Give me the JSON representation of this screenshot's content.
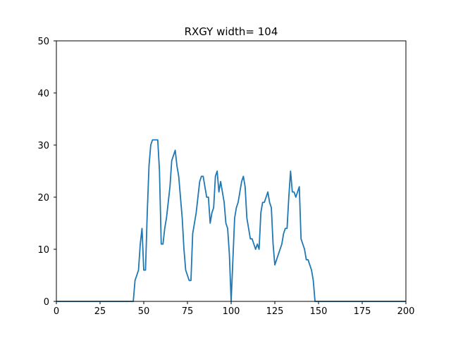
{
  "chart_data": {
    "type": "line",
    "title": "RXGY width= 104",
    "xlabel": "",
    "ylabel": "",
    "xlim": [
      0,
      200
    ],
    "ylim": [
      0,
      50
    ],
    "x_ticks": [
      0,
      25,
      50,
      75,
      100,
      125,
      150,
      175,
      200
    ],
    "y_ticks": [
      0,
      10,
      20,
      30,
      40,
      50
    ],
    "grid": false,
    "colors": {
      "line": "#1f77b4"
    },
    "series": [
      {
        "points": [
          [
            0,
            0
          ],
          [
            44,
            0
          ],
          [
            45,
            4
          ],
          [
            47,
            6
          ],
          [
            48,
            11
          ],
          [
            49,
            14
          ],
          [
            50,
            6
          ],
          [
            51,
            6
          ],
          [
            52,
            17
          ],
          [
            53,
            26
          ],
          [
            54,
            30
          ],
          [
            55,
            31
          ],
          [
            56,
            31
          ],
          [
            57,
            31
          ],
          [
            58,
            31
          ],
          [
            59,
            25
          ],
          [
            60,
            11
          ],
          [
            61,
            11
          ],
          [
            62,
            14
          ],
          [
            63,
            16
          ],
          [
            64,
            19
          ],
          [
            65,
            22
          ],
          [
            66,
            27
          ],
          [
            67,
            28
          ],
          [
            68,
            29
          ],
          [
            69,
            26
          ],
          [
            70,
            24
          ],
          [
            71,
            20
          ],
          [
            72,
            16
          ],
          [
            73,
            10
          ],
          [
            74,
            6
          ],
          [
            75,
            5
          ],
          [
            76,
            4
          ],
          [
            77,
            4
          ],
          [
            78,
            13
          ],
          [
            79,
            15
          ],
          [
            80,
            17
          ],
          [
            81,
            20
          ],
          [
            82,
            23
          ],
          [
            83,
            24
          ],
          [
            84,
            24
          ],
          [
            85,
            22
          ],
          [
            86,
            20
          ],
          [
            87,
            20
          ],
          [
            88,
            15
          ],
          [
            89,
            17
          ],
          [
            90,
            18
          ],
          [
            91,
            24
          ],
          [
            92,
            25
          ],
          [
            93,
            21
          ],
          [
            94,
            23
          ],
          [
            95,
            21
          ],
          [
            96,
            19
          ],
          [
            97,
            15
          ],
          [
            98,
            14
          ],
          [
            99,
            9
          ],
          [
            100,
            0
          ],
          [
            101,
            8
          ],
          [
            102,
            16
          ],
          [
            103,
            18
          ],
          [
            104,
            19
          ],
          [
            105,
            21
          ],
          [
            106,
            23
          ],
          [
            107,
            24
          ],
          [
            108,
            22
          ],
          [
            109,
            16
          ],
          [
            110,
            14
          ],
          [
            111,
            12
          ],
          [
            112,
            12
          ],
          [
            113,
            11
          ],
          [
            114,
            10
          ],
          [
            115,
            11
          ],
          [
            116,
            10
          ],
          [
            117,
            17
          ],
          [
            118,
            19
          ],
          [
            119,
            19
          ],
          [
            120,
            20
          ],
          [
            121,
            21
          ],
          [
            122,
            19
          ],
          [
            123,
            18
          ],
          [
            124,
            11
          ],
          [
            125,
            7
          ],
          [
            126,
            8
          ],
          [
            127,
            9
          ],
          [
            128,
            10
          ],
          [
            129,
            11
          ],
          [
            130,
            13
          ],
          [
            131,
            14
          ],
          [
            132,
            14
          ],
          [
            133,
            20
          ],
          [
            134,
            25
          ],
          [
            135,
            21
          ],
          [
            136,
            21
          ],
          [
            137,
            20
          ],
          [
            138,
            21
          ],
          [
            139,
            22
          ],
          [
            140,
            12
          ],
          [
            141,
            11
          ],
          [
            142,
            10
          ],
          [
            143,
            8
          ],
          [
            144,
            8
          ],
          [
            145,
            7
          ],
          [
            146,
            6
          ],
          [
            147,
            4
          ],
          [
            148,
            0
          ],
          [
            200,
            0
          ]
        ]
      }
    ]
  }
}
